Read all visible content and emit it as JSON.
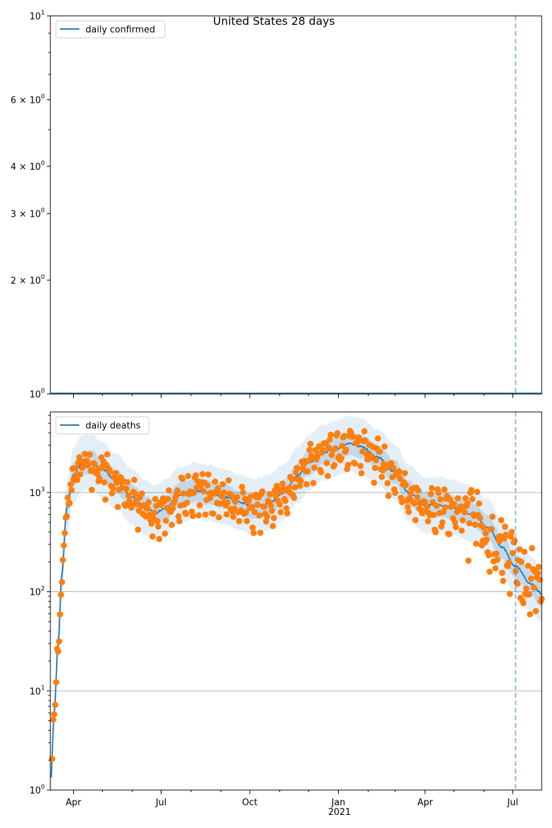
{
  "chart_data": [
    {
      "type": "line",
      "title": "United States 28 days",
      "yscale": "log",
      "ylim": [
        1,
        10
      ],
      "xlim": [
        "2020-03-08",
        "2021-07-31"
      ],
      "grid": false,
      "legend": "upper-left",
      "series": [
        {
          "name": "daily confirmed",
          "color": "#1f77b4",
          "constant": 1
        }
      ],
      "ytick_labels": [
        {
          "v": 1,
          "b": "10",
          "e": "0"
        },
        {
          "v": 2,
          "b": "2 × 10",
          "e": "0"
        },
        {
          "v": 3,
          "b": "3 × 10",
          "e": "0"
        },
        {
          "v": 4,
          "b": "4 × 10",
          "e": "0"
        },
        {
          "v": 6,
          "b": "6 × 10",
          "e": "0"
        },
        {
          "v": 10,
          "b": "10",
          "e": "1"
        }
      ],
      "vline": {
        "date": "2021-07-04",
        "color": "#1f77b4",
        "style": "dashed"
      }
    },
    {
      "type": "line",
      "yscale": "log",
      "ylim": [
        1,
        6500
      ],
      "xlim": [
        "2020-03-08",
        "2021-07-31"
      ],
      "grid": true,
      "legend": "upper-left",
      "series": [
        {
          "name": "daily deaths",
          "color": "#1f77b4"
        }
      ],
      "band_color": "#1f77b4",
      "points_color": "#ff7f0e",
      "curve_anchors": [
        [
          "2020-03-08",
          1
        ],
        [
          "2020-03-12",
          6
        ],
        [
          "2020-03-16",
          30
        ],
        [
          "2020-03-20",
          150
        ],
        [
          "2020-03-25",
          700
        ],
        [
          "2020-04-01",
          1500
        ],
        [
          "2020-04-10",
          2000
        ],
        [
          "2020-04-20",
          2000
        ],
        [
          "2020-05-01",
          1700
        ],
        [
          "2020-05-15",
          1300
        ],
        [
          "2020-06-01",
          900
        ],
        [
          "2020-06-15",
          700
        ],
        [
          "2020-06-25",
          620
        ],
        [
          "2020-07-05",
          700
        ],
        [
          "2020-07-20",
          950
        ],
        [
          "2020-08-05",
          1050
        ],
        [
          "2020-08-20",
          1000
        ],
        [
          "2020-09-05",
          900
        ],
        [
          "2020-09-20",
          800
        ],
        [
          "2020-10-05",
          720
        ],
        [
          "2020-10-20",
          780
        ],
        [
          "2020-11-05",
          1000
        ],
        [
          "2020-11-20",
          1500
        ],
        [
          "2020-12-01",
          2000
        ],
        [
          "2020-12-15",
          2500
        ],
        [
          "2021-01-01",
          2800
        ],
        [
          "2021-01-12",
          3150
        ],
        [
          "2021-01-25",
          2900
        ],
        [
          "2021-02-10",
          2300
        ],
        [
          "2021-03-01",
          1600
        ],
        [
          "2021-03-15",
          1000
        ],
        [
          "2021-04-01",
          750
        ],
        [
          "2021-04-15",
          750
        ],
        [
          "2021-05-01",
          700
        ],
        [
          "2021-05-20",
          600
        ],
        [
          "2021-06-05",
          450
        ],
        [
          "2021-06-20",
          280
        ],
        [
          "2021-07-04",
          180
        ],
        [
          "2021-07-20",
          120
        ],
        [
          "2021-07-31",
          95
        ]
      ],
      "ytick_labels": [
        {
          "v": 1,
          "b": "10",
          "e": "0"
        },
        {
          "v": 10,
          "b": "10",
          "e": "1"
        },
        {
          "v": 100,
          "b": "10",
          "e": "2"
        },
        {
          "v": 1000,
          "b": "10",
          "e": "3"
        }
      ],
      "vline": {
        "date": "2021-07-04",
        "color": "#1f77b4",
        "style": "dashed"
      }
    }
  ],
  "x_ticks": [
    {
      "date": "2020-04-01",
      "label": "Apr"
    },
    {
      "date": "2020-07-01",
      "label": "Jul"
    },
    {
      "date": "2020-10-01",
      "label": "Oct"
    },
    {
      "date": "2021-01-01",
      "label": "Jan"
    },
    {
      "date": "2021-04-01",
      "label": "Apr"
    },
    {
      "date": "2021-07-01",
      "label": "Jul"
    }
  ],
  "x_year_label": "2021"
}
